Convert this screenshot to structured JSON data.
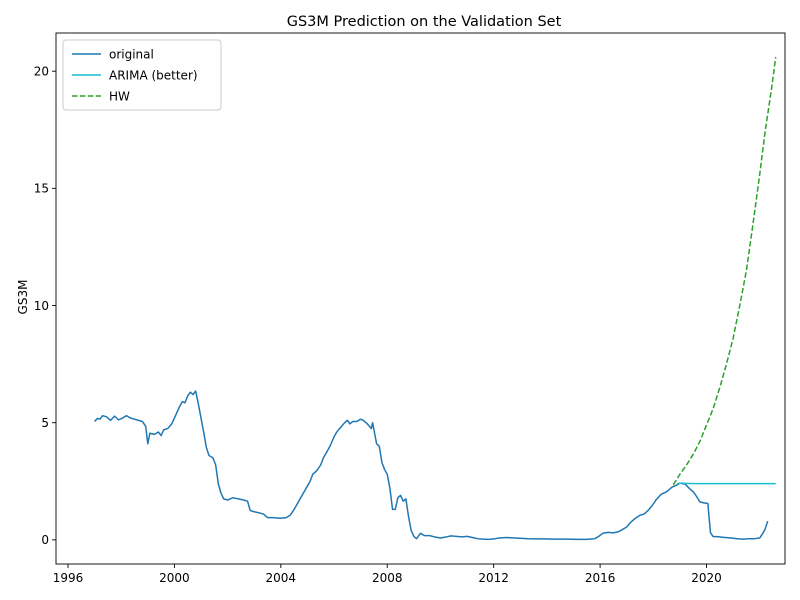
{
  "chart_data": {
    "type": "line",
    "title": "GS3M Prediction on the Validation Set",
    "xlabel": "",
    "ylabel": "GS3M",
    "xlim": [
      1995.55,
      2022.95
    ],
    "ylim": [
      -1.03,
      21.63
    ],
    "x_ticks": [
      1996,
      2000,
      2004,
      2008,
      2012,
      2016,
      2020
    ],
    "x_tick_labels": [
      "1996",
      "2000",
      "2004",
      "2008",
      "2012",
      "2016",
      "2020"
    ],
    "y_ticks": [
      0,
      5,
      10,
      15,
      20
    ],
    "y_tick_labels": [
      "0",
      "5",
      "10",
      "15",
      "20"
    ],
    "grid": false,
    "legend_position": "upper-left",
    "series": [
      {
        "name": "original",
        "color": "#1f77b4",
        "style": "solid",
        "points": [
          [
            1997.0,
            5.05
          ],
          [
            1997.1,
            5.18
          ],
          [
            1997.2,
            5.15
          ],
          [
            1997.3,
            5.3
          ],
          [
            1997.45,
            5.25
          ],
          [
            1997.6,
            5.1
          ],
          [
            1997.75,
            5.28
          ],
          [
            1997.9,
            5.12
          ],
          [
            1998.05,
            5.2
          ],
          [
            1998.2,
            5.3
          ],
          [
            1998.35,
            5.2
          ],
          [
            1998.5,
            5.15
          ],
          [
            1998.65,
            5.1
          ],
          [
            1998.8,
            5.05
          ],
          [
            1998.92,
            4.85
          ],
          [
            1999.0,
            4.1
          ],
          [
            1999.08,
            4.55
          ],
          [
            1999.25,
            4.5
          ],
          [
            1999.4,
            4.6
          ],
          [
            1999.5,
            4.45
          ],
          [
            1999.6,
            4.7
          ],
          [
            1999.75,
            4.75
          ],
          [
            1999.9,
            4.95
          ],
          [
            2000.0,
            5.2
          ],
          [
            2000.1,
            5.45
          ],
          [
            2000.2,
            5.7
          ],
          [
            2000.3,
            5.9
          ],
          [
            2000.4,
            5.85
          ],
          [
            2000.5,
            6.15
          ],
          [
            2000.6,
            6.3
          ],
          [
            2000.7,
            6.2
          ],
          [
            2000.8,
            6.35
          ],
          [
            2000.9,
            5.8
          ],
          [
            2001.0,
            5.2
          ],
          [
            2001.1,
            4.6
          ],
          [
            2001.2,
            3.95
          ],
          [
            2001.3,
            3.6
          ],
          [
            2001.45,
            3.5
          ],
          [
            2001.55,
            3.2
          ],
          [
            2001.65,
            2.4
          ],
          [
            2001.75,
            2.0
          ],
          [
            2001.85,
            1.75
          ],
          [
            2002.0,
            1.7
          ],
          [
            2002.2,
            1.8
          ],
          [
            2002.4,
            1.75
          ],
          [
            2002.6,
            1.7
          ],
          [
            2002.75,
            1.65
          ],
          [
            2002.85,
            1.25
          ],
          [
            2003.0,
            1.2
          ],
          [
            2003.2,
            1.15
          ],
          [
            2003.35,
            1.1
          ],
          [
            2003.5,
            0.95
          ],
          [
            2003.7,
            0.95
          ],
          [
            2003.9,
            0.93
          ],
          [
            2004.0,
            0.92
          ],
          [
            2004.2,
            0.95
          ],
          [
            2004.35,
            1.05
          ],
          [
            2004.5,
            1.3
          ],
          [
            2004.6,
            1.5
          ],
          [
            2004.75,
            1.8
          ],
          [
            2004.9,
            2.1
          ],
          [
            2005.0,
            2.3
          ],
          [
            2005.1,
            2.5
          ],
          [
            2005.2,
            2.8
          ],
          [
            2005.35,
            2.95
          ],
          [
            2005.5,
            3.2
          ],
          [
            2005.6,
            3.5
          ],
          [
            2005.75,
            3.8
          ],
          [
            2005.85,
            4.0
          ],
          [
            2006.0,
            4.4
          ],
          [
            2006.1,
            4.6
          ],
          [
            2006.25,
            4.8
          ],
          [
            2006.4,
            5.0
          ],
          [
            2006.5,
            5.1
          ],
          [
            2006.6,
            4.95
          ],
          [
            2006.7,
            5.05
          ],
          [
            2006.85,
            5.05
          ],
          [
            2007.0,
            5.15
          ],
          [
            2007.1,
            5.1
          ],
          [
            2007.25,
            4.95
          ],
          [
            2007.4,
            4.75
          ],
          [
            2007.45,
            5.0
          ],
          [
            2007.5,
            4.7
          ],
          [
            2007.6,
            4.1
          ],
          [
            2007.7,
            4.0
          ],
          [
            2007.8,
            3.3
          ],
          [
            2007.9,
            3.0
          ],
          [
            2008.0,
            2.8
          ],
          [
            2008.1,
            2.2
          ],
          [
            2008.2,
            1.3
          ],
          [
            2008.3,
            1.3
          ],
          [
            2008.4,
            1.8
          ],
          [
            2008.5,
            1.9
          ],
          [
            2008.6,
            1.65
          ],
          [
            2008.7,
            1.75
          ],
          [
            2008.8,
            1.0
          ],
          [
            2008.9,
            0.4
          ],
          [
            2009.0,
            0.15
          ],
          [
            2009.1,
            0.05
          ],
          [
            2009.25,
            0.28
          ],
          [
            2009.4,
            0.18
          ],
          [
            2009.6,
            0.18
          ],
          [
            2009.8,
            0.12
          ],
          [
            2010.0,
            0.08
          ],
          [
            2010.2,
            0.12
          ],
          [
            2010.4,
            0.17
          ],
          [
            2010.6,
            0.15
          ],
          [
            2010.8,
            0.13
          ],
          [
            2011.0,
            0.15
          ],
          [
            2011.2,
            0.1
          ],
          [
            2011.4,
            0.05
          ],
          [
            2011.6,
            0.03
          ],
          [
            2011.8,
            0.02
          ],
          [
            2012.0,
            0.04
          ],
          [
            2012.2,
            0.08
          ],
          [
            2012.5,
            0.1
          ],
          [
            2012.8,
            0.08
          ],
          [
            2013.0,
            0.07
          ],
          [
            2013.3,
            0.05
          ],
          [
            2013.6,
            0.04
          ],
          [
            2013.9,
            0.04
          ],
          [
            2014.2,
            0.03
          ],
          [
            2014.5,
            0.03
          ],
          [
            2014.8,
            0.03
          ],
          [
            2015.1,
            0.02
          ],
          [
            2015.5,
            0.02
          ],
          [
            2015.8,
            0.05
          ],
          [
            2015.95,
            0.15
          ],
          [
            2016.1,
            0.28
          ],
          [
            2016.3,
            0.32
          ],
          [
            2016.5,
            0.3
          ],
          [
            2016.7,
            0.35
          ],
          [
            2016.85,
            0.45
          ],
          [
            2017.0,
            0.55
          ],
          [
            2017.15,
            0.75
          ],
          [
            2017.3,
            0.9
          ],
          [
            2017.5,
            1.05
          ],
          [
            2017.65,
            1.1
          ],
          [
            2017.8,
            1.25
          ],
          [
            2017.95,
            1.45
          ],
          [
            2018.1,
            1.7
          ],
          [
            2018.3,
            1.95
          ],
          [
            2018.5,
            2.05
          ],
          [
            2018.7,
            2.25
          ],
          [
            2018.9,
            2.35
          ],
          [
            2019.0,
            2.42
          ],
          [
            2019.1,
            2.4
          ],
          [
            2019.2,
            2.38
          ],
          [
            2019.35,
            2.2
          ],
          [
            2019.5,
            2.05
          ],
          [
            2019.6,
            1.9
          ],
          [
            2019.75,
            1.62
          ],
          [
            2019.9,
            1.58
          ],
          [
            2020.05,
            1.55
          ],
          [
            2020.15,
            0.3
          ],
          [
            2020.25,
            0.14
          ],
          [
            2020.4,
            0.14
          ],
          [
            2020.6,
            0.11
          ],
          [
            2020.8,
            0.09
          ],
          [
            2021.0,
            0.07
          ],
          [
            2021.2,
            0.04
          ],
          [
            2021.4,
            0.03
          ],
          [
            2021.6,
            0.05
          ],
          [
            2021.8,
            0.05
          ],
          [
            2022.0,
            0.08
          ],
          [
            2022.1,
            0.25
          ],
          [
            2022.2,
            0.45
          ],
          [
            2022.3,
            0.8
          ]
        ]
      },
      {
        "name": "ARIMA (better)",
        "color": "#17becf",
        "style": "solid",
        "points": [
          [
            2018.9,
            2.4
          ],
          [
            2019.05,
            2.42
          ],
          [
            2019.2,
            2.41
          ],
          [
            2019.5,
            2.4
          ],
          [
            2020.0,
            2.4
          ],
          [
            2020.5,
            2.4
          ],
          [
            2021.0,
            2.4
          ],
          [
            2021.5,
            2.4
          ],
          [
            2022.0,
            2.4
          ],
          [
            2022.6,
            2.4
          ]
        ]
      },
      {
        "name": "HW",
        "color": "#2ca02c",
        "style": "dashed",
        "points": [
          [
            2018.75,
            2.35
          ],
          [
            2019.0,
            2.8
          ],
          [
            2019.25,
            3.2
          ],
          [
            2019.5,
            3.65
          ],
          [
            2019.75,
            4.2
          ],
          [
            2020.0,
            4.9
          ],
          [
            2020.25,
            5.6
          ],
          [
            2020.5,
            6.5
          ],
          [
            2020.75,
            7.5
          ],
          [
            2021.0,
            8.6
          ],
          [
            2021.25,
            10.0
          ],
          [
            2021.5,
            11.5
          ],
          [
            2021.75,
            13.5
          ],
          [
            2022.0,
            15.6
          ],
          [
            2022.2,
            17.4
          ],
          [
            2022.45,
            19.3
          ],
          [
            2022.6,
            20.6
          ]
        ]
      }
    ]
  }
}
